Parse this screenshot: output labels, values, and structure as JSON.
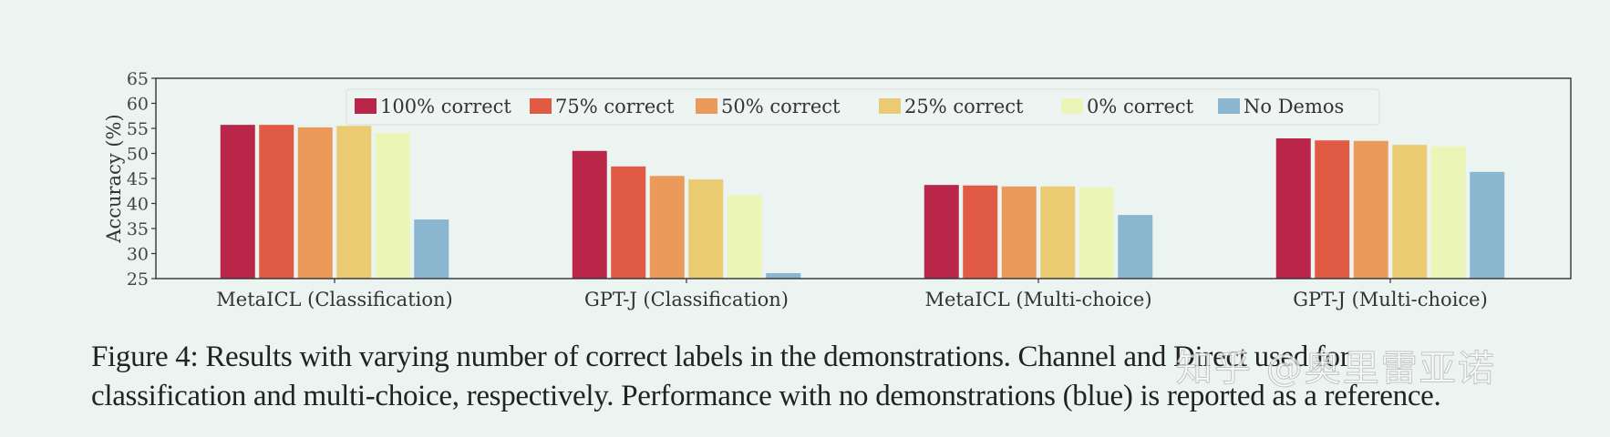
{
  "chart_data": {
    "type": "bar",
    "title": "",
    "xlabel": "",
    "ylabel": "Accuracy (%)",
    "ylim": [
      25,
      65
    ],
    "yticks": [
      25,
      30,
      35,
      40,
      45,
      50,
      55,
      60,
      65
    ],
    "grid": false,
    "legend_position": "upper center",
    "categories": [
      "MetaICL (Classification)",
      "GPT-J (Classification)",
      "MetaICL (Multi-choice)",
      "GPT-J (Multi-choice)"
    ],
    "series": [
      {
        "name": "100% correct",
        "color": "#b9264a",
        "values": [
          55.7,
          50.5,
          43.7,
          53.0
        ]
      },
      {
        "name": "75% correct",
        "color": "#e05a44",
        "values": [
          55.7,
          47.4,
          43.6,
          52.6
        ]
      },
      {
        "name": "50% correct",
        "color": "#ec9a5a",
        "values": [
          55.2,
          45.5,
          43.4,
          52.5
        ]
      },
      {
        "name": "25% correct",
        "color": "#ebcb72",
        "values": [
          55.5,
          44.8,
          43.4,
          51.7
        ]
      },
      {
        "name": "0% correct",
        "color": "#ebf5b8",
        "values": [
          54.1,
          41.7,
          43.2,
          51.4
        ]
      },
      {
        "name": "No Demos",
        "color": "#8ab6d0",
        "values": [
          36.8,
          26.1,
          37.7,
          46.3
        ]
      }
    ]
  },
  "caption": {
    "line1": "Figure 4:  Results with varying number of correct labels in the demonstrations.  Channel and Direct used for",
    "line2": "classification and multi-choice, respectively. Performance with no demonstrations (blue) is reported as a reference."
  },
  "watermark": "知乎 @奥里雷亚诺",
  "colors": {
    "background": "#ebf4f1",
    "axis": "#333333",
    "text": "#333333"
  }
}
